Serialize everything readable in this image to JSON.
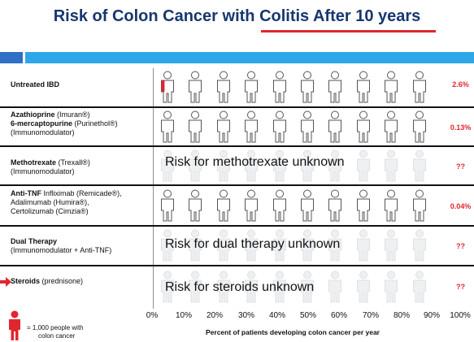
{
  "slide": {
    "title": "Risk of Colon Cancer with Colitis After 10 years"
  },
  "rows": [
    {
      "label_bold": "Untreated IBD",
      "label_rest": "",
      "risk": "2.6%",
      "overlay": "",
      "faded": false,
      "highlight_fraction": 0.26,
      "marker_arrow": false
    },
    {
      "label_bold": "Azathioprine",
      "label_rest": " (Imuran®)",
      "label_line2_bold": "6-mercaptopurine",
      "label_line2_rest": " (Purinethol®)",
      "label_line3": "(Immunomodulator)",
      "risk": "0.13%",
      "overlay": "",
      "faded": false,
      "highlight_fraction": 0,
      "marker_arrow": false
    },
    {
      "label_bold": "Methotrexate",
      "label_rest": " (Trexall®)",
      "label_line2_bold": "",
      "label_line2_rest": "(Immunomodulator)",
      "risk": "??",
      "overlay": "Risk for methotrexate unknown",
      "faded": true,
      "highlight_fraction": 0,
      "marker_arrow": false
    },
    {
      "label_bold": "Anti-TNF",
      "label_rest": " Infliximab (Remicade®),",
      "label_line2_bold": "",
      "label_line2_rest": "Adalimumab (Humira®),",
      "label_line3": "Certolizumab (Cimzia®)",
      "risk": "0.04%",
      "overlay": "",
      "faded": false,
      "highlight_fraction": 0,
      "marker_arrow": false
    },
    {
      "label_bold": "Dual Therapy",
      "label_rest": "",
      "label_line2_bold": "",
      "label_line2_rest": "(Immunomodulator + Anti-TNF)",
      "risk": "??",
      "overlay": "Risk for dual therapy unknown",
      "faded": true,
      "highlight_fraction": 0,
      "marker_arrow": false
    },
    {
      "label_bold": "Steroids",
      "label_rest": " (prednisone)",
      "risk": "??",
      "overlay": "Risk for steroids unknown",
      "faded": true,
      "highlight_fraction": 0,
      "marker_arrow": true
    }
  ],
  "axis": {
    "ticks": [
      "0%",
      "10%",
      "20%",
      "30%",
      "40%",
      "50%",
      "60%",
      "70%",
      "80%",
      "90%",
      "100%"
    ],
    "title": "Percent of patients developing colon cancer per year"
  },
  "legend": {
    "text_line1": "= 1,000 people with",
    "text_line2": "colon cancer"
  },
  "colors": {
    "title": "#17376e",
    "accent_red": "#e0262e",
    "bar_blue": "#2ea7e8",
    "bar_dark": "#2f6fc4"
  },
  "icons": {
    "person": "person-icon",
    "arrow": "arrow-right-icon"
  }
}
